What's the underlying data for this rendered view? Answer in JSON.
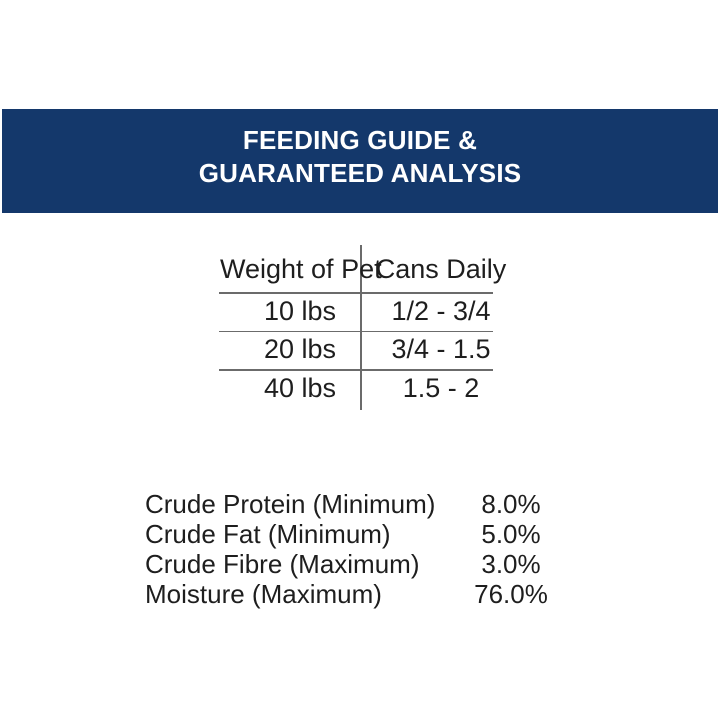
{
  "page": {
    "background_color": "#FFFFFF",
    "ink_color": "#1E1E1E",
    "rule_color": "#6B6B6B"
  },
  "banner": {
    "title_line1": "FEEDING GUIDE &",
    "title_line2": "GUARANTEED ANALYSIS",
    "background_color": "#14386B",
    "text_color": "#FFFFFF"
  },
  "feeding_table": {
    "columns": [
      "Weight of Pet",
      "Cans Daily"
    ],
    "rows": [
      {
        "weight": "10 lbs",
        "cans": "1/2 - 3/4"
      },
      {
        "weight": "20 lbs",
        "cans": "3/4 - 1.5"
      },
      {
        "weight": "40 lbs",
        "cans": "1.5 - 2"
      }
    ]
  },
  "guaranteed_analysis": {
    "items": [
      {
        "label": "Crude Protein (Minimum)",
        "value": "8.0%"
      },
      {
        "label": "Crude Fat (Minimum)",
        "value": "5.0%"
      },
      {
        "label": "Crude Fibre (Maximum)",
        "value": "3.0%"
      },
      {
        "label": "Moisture (Maximum)",
        "value": "76.0%"
      }
    ]
  }
}
